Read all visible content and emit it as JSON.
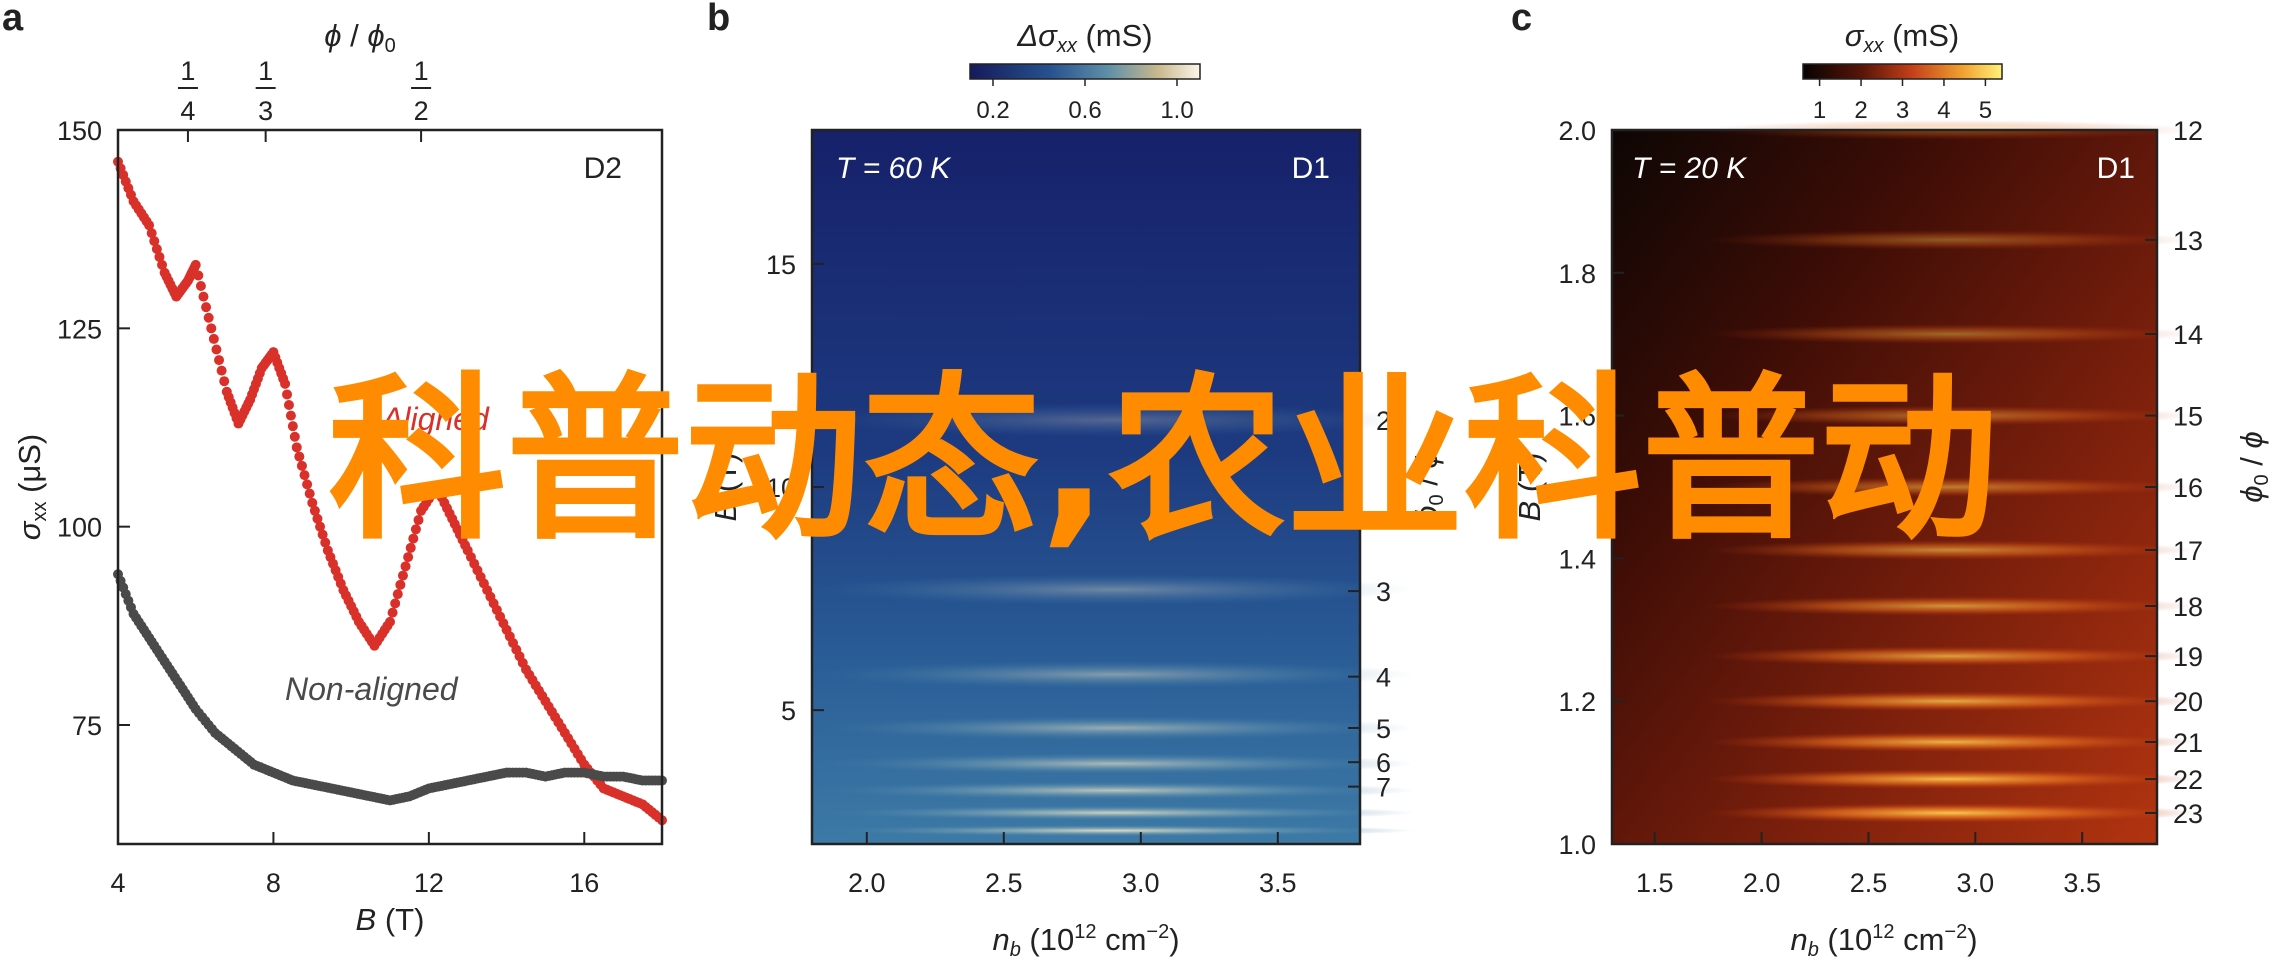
{
  "chart_data": [
    {
      "panel": "a",
      "type": "scatter",
      "tag": "D2",
      "xlabel": "B (T)",
      "ylabel": "σxx (μS)",
      "xlim": [
        4,
        18
      ],
      "ylim": [
        60,
        150
      ],
      "xticks": [
        4,
        8,
        12,
        16
      ],
      "yticks": [
        75,
        100,
        125,
        150
      ],
      "top_axis": {
        "label": "φ / φ0",
        "ticks": [
          {
            "label_num": "1",
            "label_den": "4",
            "x": 5.8
          },
          {
            "label_num": "1",
            "label_den": "3",
            "x": 7.8
          },
          {
            "label_num": "1",
            "label_den": "2",
            "x": 11.8
          }
        ]
      },
      "series": [
        {
          "name": "Aligned",
          "color": "#d9302a",
          "x": [
            4.0,
            4.4,
            4.8,
            5.2,
            5.5,
            5.8,
            6.0,
            6.4,
            6.8,
            7.1,
            7.4,
            7.7,
            8.0,
            8.3,
            8.6,
            9.0,
            9.4,
            9.8,
            10.2,
            10.6,
            11.0,
            11.4,
            11.8,
            12.2,
            12.6,
            13.0,
            13.5,
            14.0,
            14.5,
            15.0,
            15.5,
            16.0,
            16.5,
            17.0,
            17.5,
            18.0
          ],
          "y": [
            146,
            141,
            138,
            132,
            129,
            131,
            133,
            125,
            117,
            113,
            116,
            120,
            122,
            118,
            110,
            103,
            97,
            92,
            88,
            85,
            88,
            95,
            102,
            105,
            101,
            97,
            92,
            87,
            82,
            78,
            74,
            70,
            67,
            66,
            65,
            63
          ]
        },
        {
          "name": "Non-aligned",
          "color": "#4a4a4a",
          "x": [
            4.0,
            4.4,
            4.8,
            5.2,
            5.6,
            6.0,
            6.5,
            7.0,
            7.5,
            8.0,
            8.5,
            9.0,
            9.5,
            10.0,
            10.5,
            11.0,
            11.5,
            12.0,
            12.5,
            13.0,
            13.5,
            14.0,
            14.5,
            15.0,
            15.5,
            16.0,
            16.5,
            17.0,
            17.5,
            18.0
          ],
          "y": [
            94,
            89,
            86,
            83,
            80,
            77,
            74,
            72,
            70,
            69,
            68,
            67.5,
            67,
            66.5,
            66,
            65.5,
            66,
            67,
            67.5,
            68,
            68.5,
            69,
            69,
            68.5,
            69,
            69,
            68.5,
            68.5,
            68,
            68
          ]
        }
      ]
    },
    {
      "panel": "b",
      "type": "heatmap",
      "tag": "D1",
      "annotation": "T = 60 K",
      "xlabel": "nb (10^12 cm^-2)",
      "ylabel": "B (T)",
      "xlim": [
        1.8,
        3.8
      ],
      "ylim": [
        2,
        18
      ],
      "xticks": [
        2.0,
        2.5,
        3.0,
        3.5
      ],
      "yticks": [
        5,
        10,
        15
      ],
      "colorbar": {
        "label": "Δσxx (mS)",
        "ticks": [
          0.2,
          0.6,
          1.0
        ],
        "range": [
          0.1,
          1.1
        ]
      },
      "right_axis": {
        "label": "φ0 / φ",
        "ticks": [
          2,
          3,
          4,
          5,
          6,
          7
        ]
      },
      "fringes_B": [
        2.3,
        2.7,
        3.2,
        3.8,
        4.6,
        5.8,
        7.7,
        11.5
      ]
    },
    {
      "panel": "c",
      "type": "heatmap",
      "tag": "D1",
      "annotation": "T = 20 K",
      "xlabel": "nb (10^12 cm^-2)",
      "ylabel": "B (T)",
      "xlim": [
        1.3,
        3.85
      ],
      "ylim": [
        1.0,
        2.0
      ],
      "xticks": [
        1.5,
        2.0,
        2.5,
        3.0,
        3.5
      ],
      "yticks": [
        1.0,
        1.2,
        1.4,
        1.6,
        1.8,
        2.0
      ],
      "colorbar": {
        "label": "σxx (mS)",
        "ticks": [
          1,
          2,
          3,
          4,
          5
        ],
        "range": [
          0.6,
          5.4
        ]
      },
      "right_axis": {
        "label": "φ0 / φ",
        "ticks": [
          12,
          13,
          14,
          15,
          16,
          17,
          18,
          19,
          20,
          21,
          22,
          23
        ]
      }
    }
  ],
  "labels": {
    "panel_a": "a",
    "panel_b": "b",
    "panel_c": "c",
    "a_tag": "D2",
    "b_tag": "D1",
    "c_tag": "D1",
    "a_series1": "Aligned",
    "a_series2": "Non-aligned",
    "b_temp": "T = 60 K",
    "c_temp": "T = 20 K"
  },
  "watermark": "科普动态,农业科普动"
}
